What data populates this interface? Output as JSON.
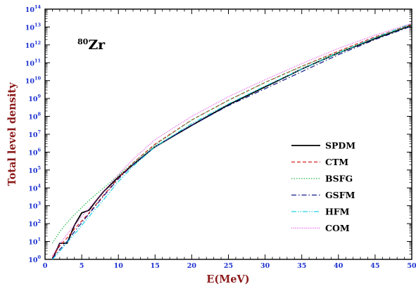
{
  "chart_data": {
    "type": "line",
    "title": "",
    "annotation": {
      "mass_number": "80",
      "element": "Zr"
    },
    "xlabel": "E(MeV)",
    "ylabel": "Total level density",
    "xlim": [
      0,
      50
    ],
    "ylim_log10": [
      0,
      14
    ],
    "yscale": "log",
    "x_ticks": [
      0,
      5,
      10,
      15,
      20,
      25,
      30,
      35,
      40,
      45,
      50
    ],
    "y_ticks_exponents": [
      0,
      1,
      2,
      3,
      4,
      5,
      6,
      7,
      8,
      9,
      10,
      11,
      12,
      13,
      14
    ],
    "y_tick_base": "10",
    "grid": false,
    "legend_position": "lower-right",
    "series": [
      {
        "name": "SPDM",
        "color": "#000000",
        "dash": "solid",
        "x": [
          1,
          2,
          3,
          4,
          5,
          6,
          7,
          8,
          10,
          12,
          15,
          20,
          25,
          30,
          35,
          40,
          45,
          50
        ],
        "log10y": [
          0.0,
          0.9,
          0.9,
          1.9,
          2.6,
          2.75,
          3.3,
          3.8,
          4.6,
          5.3,
          6.3,
          7.5,
          8.65,
          9.65,
          10.65,
          11.55,
          12.35,
          13.1
        ]
      },
      {
        "name": "CTM",
        "color": "#d42020",
        "dash": "dashed",
        "x": [
          1,
          2,
          3,
          4,
          5,
          6,
          8,
          10,
          12,
          15,
          20,
          25,
          30,
          35,
          40,
          45,
          50
        ],
        "log10y": [
          0.1,
          0.75,
          1.2,
          1.7,
          2.15,
          2.6,
          3.6,
          4.55,
          5.4,
          6.45,
          7.8,
          8.9,
          9.9,
          10.8,
          11.65,
          12.45,
          13.15
        ]
      },
      {
        "name": "BSFG",
        "color": "#22b84a",
        "dash": "dotted",
        "x": [
          1,
          2,
          3,
          4,
          5,
          6,
          8,
          10,
          12,
          15,
          20,
          25,
          30,
          35,
          40,
          45,
          50
        ],
        "log10y": [
          0.9,
          1.55,
          2.05,
          2.5,
          2.9,
          3.3,
          4.0,
          4.7,
          5.4,
          6.4,
          7.8,
          8.9,
          9.9,
          10.8,
          11.6,
          12.4,
          13.1
        ]
      },
      {
        "name": "GSFM",
        "color": "#121a8a",
        "dash": "dashdot",
        "x": [
          1,
          2,
          3,
          4,
          5,
          6,
          8,
          10,
          12,
          15,
          20,
          25,
          30,
          35,
          40,
          45,
          50
        ],
        "log10y": [
          0.05,
          0.55,
          1.0,
          1.55,
          2.05,
          2.55,
          3.55,
          4.5,
          5.3,
          6.3,
          7.5,
          8.6,
          9.55,
          10.5,
          11.45,
          12.3,
          13.05
        ]
      },
      {
        "name": "HFM",
        "color": "#20d0e0",
        "dash": "dashdotdot",
        "x": [
          1,
          2,
          3,
          4,
          5,
          6,
          8,
          10,
          12,
          15,
          20,
          25,
          30,
          35,
          40,
          45,
          50
        ],
        "log10y": [
          0.0,
          0.45,
          0.95,
          1.4,
          1.9,
          2.4,
          3.35,
          4.35,
          5.2,
          6.3,
          7.6,
          8.7,
          9.7,
          10.65,
          11.55,
          12.4,
          13.2
        ]
      },
      {
        "name": "COM",
        "color": "#e040e0",
        "dash": "fine-dotted",
        "x": [
          1,
          2,
          3,
          4,
          5,
          6,
          8,
          10,
          12,
          15,
          20,
          25,
          30,
          35,
          40,
          45,
          50
        ],
        "log10y": [
          0.2,
          0.85,
          1.4,
          1.9,
          2.4,
          2.85,
          3.8,
          4.75,
          5.6,
          6.7,
          8.0,
          9.1,
          10.05,
          10.95,
          11.8,
          12.55,
          13.2
        ]
      }
    ]
  }
}
